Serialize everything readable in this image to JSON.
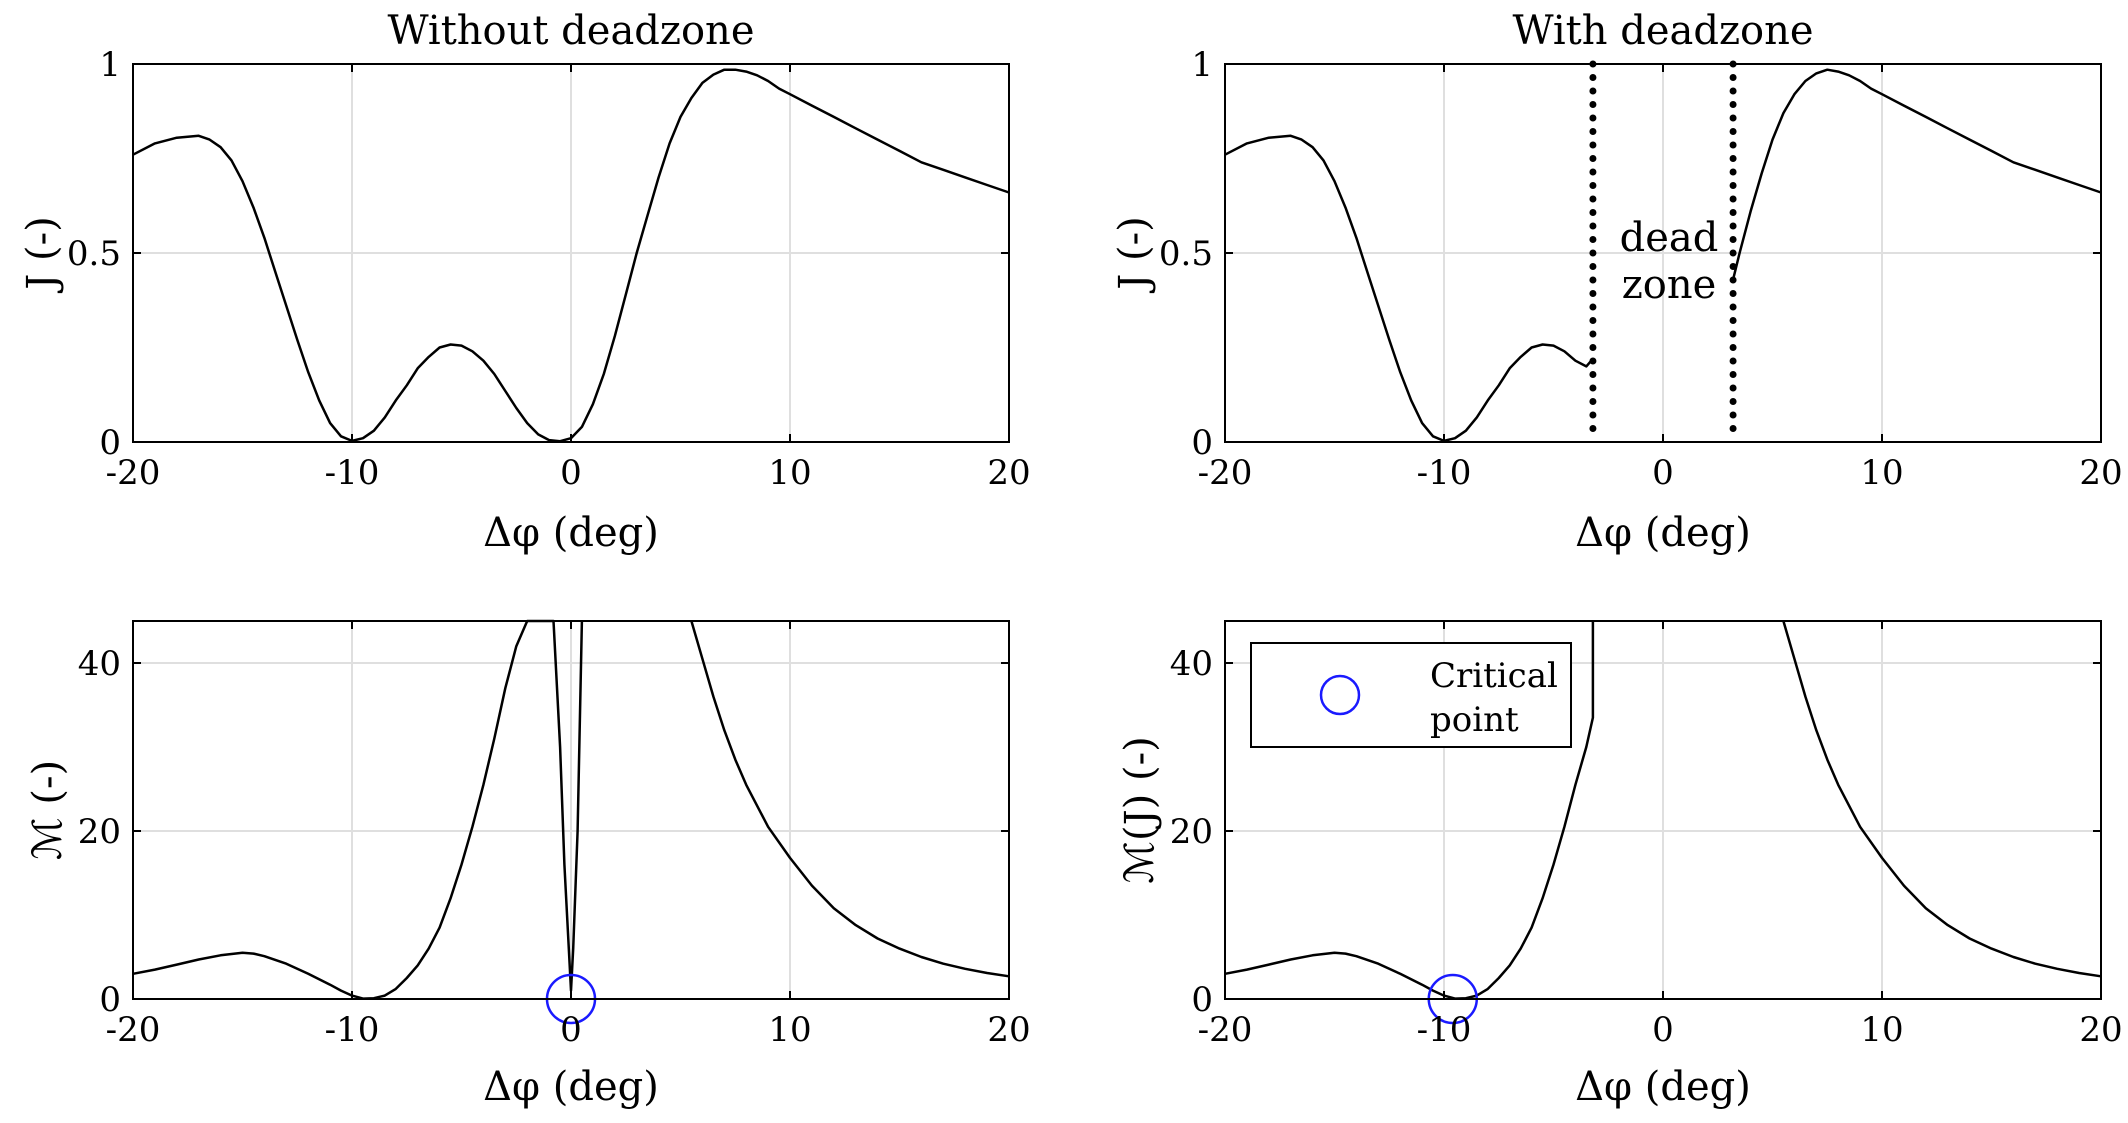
{
  "colors": {
    "line": "#000000",
    "grid": "#dfdfdf",
    "marker": "#1a1aff",
    "background": "#ffffff"
  },
  "chart_data": [
    {
      "type": "line",
      "title": "Without deadzone",
      "xlabel": "Δφ (deg)",
      "ylabel": "J (-)",
      "xlim": [
        -20,
        20
      ],
      "ylim": [
        0,
        1
      ],
      "xticks": [
        -20,
        -10,
        0,
        10,
        20
      ],
      "xtick_labels": [
        "-20",
        "-10",
        "0",
        "10",
        "20"
      ],
      "yticks": [
        0,
        0.5,
        1
      ],
      "ytick_labels": [
        "0",
        "0.5",
        "1"
      ],
      "grid": true,
      "series": [
        {
          "x": [
            -20,
            -19,
            -18,
            -17,
            -16.5,
            -16,
            -15.5,
            -15,
            -14.5,
            -14,
            -13.5,
            -13,
            -12.5,
            -12,
            -11.5,
            -11,
            -10.5,
            -10,
            -9.5,
            -9,
            -8.5,
            -8,
            -7.5,
            -7,
            -6.5,
            -6,
            -5.5,
            -5,
            -4.5,
            -4,
            -3.5,
            -3,
            -2.5,
            -2,
            -1.5,
            -1,
            -0.5,
            0,
            0.5,
            1,
            1.5,
            2,
            2.5,
            3,
            3.5,
            4,
            4.5,
            5,
            5.5,
            6,
            6.5,
            7,
            7.5,
            8,
            8.5,
            9,
            9.5,
            10,
            11,
            12,
            13,
            14,
            15,
            16,
            17,
            18,
            19,
            20
          ],
          "y": [
            0.76,
            0.79,
            0.805,
            0.81,
            0.8,
            0.78,
            0.745,
            0.69,
            0.62,
            0.54,
            0.45,
            0.36,
            0.27,
            0.185,
            0.11,
            0.05,
            0.015,
            0.003,
            0.01,
            0.03,
            0.065,
            0.11,
            0.15,
            0.195,
            0.225,
            0.25,
            0.258,
            0.255,
            0.24,
            0.215,
            0.18,
            0.135,
            0.09,
            0.05,
            0.02,
            0.005,
            0.002,
            0.01,
            0.04,
            0.1,
            0.18,
            0.28,
            0.39,
            0.5,
            0.6,
            0.7,
            0.79,
            0.86,
            0.91,
            0.95,
            0.972,
            0.985,
            0.985,
            0.98,
            0.97,
            0.955,
            0.935,
            0.92,
            0.89,
            0.86,
            0.83,
            0.8,
            0.77,
            0.74,
            0.72,
            0.7,
            0.68,
            0.66
          ]
        }
      ]
    },
    {
      "type": "line",
      "title": "With deadzone",
      "xlabel": "Δφ (deg)",
      "ylabel": "J (-)",
      "xlim": [
        -20,
        20
      ],
      "ylim": [
        0,
        1
      ],
      "xticks": [
        -20,
        -10,
        0,
        10,
        20
      ],
      "xtick_labels": [
        "-20",
        "-10",
        "0",
        "10",
        "20"
      ],
      "yticks": [
        0,
        0.5,
        1
      ],
      "ytick_labels": [
        "0",
        "0.5",
        "1"
      ],
      "grid": true,
      "deadzone": [
        -3.2,
        3.2
      ],
      "annotation": [
        "dead",
        "zone"
      ],
      "series": [
        {
          "x": [
            -20,
            -19,
            -18,
            -17,
            -16.5,
            -16,
            -15.5,
            -15,
            -14.5,
            -14,
            -13.5,
            -13,
            -12.5,
            -12,
            -11.5,
            -11,
            -10.5,
            -10,
            -9.5,
            -9,
            -8.5,
            -8,
            -7.5,
            -7,
            -6.5,
            -6,
            -5.5,
            -5,
            -4.5,
            -4,
            -3.5,
            -3.2
          ],
          "y": [
            0.76,
            0.79,
            0.805,
            0.81,
            0.8,
            0.78,
            0.745,
            0.69,
            0.62,
            0.54,
            0.45,
            0.36,
            0.27,
            0.185,
            0.11,
            0.05,
            0.015,
            0.003,
            0.01,
            0.03,
            0.065,
            0.11,
            0.15,
            0.195,
            0.225,
            0.25,
            0.258,
            0.255,
            0.24,
            0.215,
            0.2,
            0.22
          ]
        },
        {
          "x": [
            3.2,
            3.5,
            4,
            4.5,
            5,
            5.5,
            6,
            6.5,
            7,
            7.5,
            8,
            8.5,
            9,
            9.5,
            10,
            11,
            12,
            13,
            14,
            15,
            16,
            17,
            18,
            19,
            20
          ],
          "y": [
            0.43,
            0.5,
            0.61,
            0.71,
            0.8,
            0.87,
            0.92,
            0.955,
            0.975,
            0.985,
            0.98,
            0.97,
            0.955,
            0.935,
            0.92,
            0.89,
            0.86,
            0.83,
            0.8,
            0.77,
            0.74,
            0.72,
            0.7,
            0.68,
            0.66
          ]
        }
      ]
    },
    {
      "type": "line",
      "xlabel": "Δφ (deg)",
      "ylabel": "ℳ (-)",
      "xlim": [
        -20,
        20
      ],
      "ylim": [
        0,
        45
      ],
      "xticks": [
        -20,
        -10,
        0,
        10,
        20
      ],
      "xtick_labels": [
        "-20",
        "-10",
        "0",
        "10",
        "20"
      ],
      "yticks": [
        0,
        20,
        40
      ],
      "ytick_labels": [
        "0",
        "20",
        "40"
      ],
      "grid": true,
      "markers": [
        {
          "x": 0,
          "y": 0
        }
      ],
      "series": [
        {
          "x": [
            -20,
            -19,
            -18,
            -17,
            -16,
            -15,
            -14.5,
            -14,
            -13,
            -12,
            -11,
            -10.5,
            -10,
            -9.5,
            -9,
            -8.5,
            -8,
            -7.5,
            -7,
            -6.5,
            -6,
            -5.5,
            -5,
            -4.5,
            -4,
            -3.5,
            -3,
            -2.5,
            -2,
            -1.5,
            -0.8,
            -0.5,
            -0.3,
            -0.1,
            0,
            0.1,
            0.3,
            0.5
          ],
          "y": [
            3,
            3.5,
            4.1,
            4.7,
            5.2,
            5.5,
            5.4,
            5.1,
            4.2,
            3,
            1.7,
            1,
            0.4,
            0.05,
            0.1,
            0.4,
            1.2,
            2.5,
            4,
            6,
            8.5,
            12,
            16,
            20.5,
            25.5,
            31,
            37,
            42,
            45,
            46,
            46,
            30,
            16,
            6,
            1,
            6,
            20,
            46
          ]
        },
        {
          "x": [
            5.5,
            6,
            6.5,
            7,
            7.5,
            8,
            9,
            10,
            11,
            12,
            13,
            14,
            15,
            16,
            17,
            18,
            19,
            20
          ],
          "y": [
            45,
            40.5,
            36,
            32,
            28.5,
            25.5,
            20.5,
            16.8,
            13.5,
            10.8,
            8.8,
            7.2,
            6,
            5,
            4.2,
            3.6,
            3.1,
            2.7
          ]
        }
      ]
    },
    {
      "type": "line",
      "xlabel": "Δφ (deg)",
      "ylabel": "ℳ(J) (-)",
      "xlim": [
        -20,
        20
      ],
      "ylim": [
        0,
        45
      ],
      "xticks": [
        -20,
        -10,
        0,
        10,
        20
      ],
      "xtick_labels": [
        "-20",
        "-10",
        "0",
        "10",
        "20"
      ],
      "yticks": [
        0,
        20,
        40
      ],
      "ytick_labels": [
        "0",
        "20",
        "40"
      ],
      "grid": true,
      "markers": [
        {
          "x": -9.6,
          "y": 0
        }
      ],
      "legend": {
        "position": "top-left",
        "entries": [
          "Critical",
          "point"
        ]
      },
      "series": [
        {
          "x": [
            -20,
            -19,
            -18,
            -17,
            -16,
            -15,
            -14.5,
            -14,
            -13,
            -12,
            -11,
            -10.5,
            -10,
            -9.5,
            -9,
            -8.5,
            -8,
            -7.5,
            -7,
            -6.5,
            -6,
            -5.5,
            -5,
            -4.5,
            -4,
            -3.5,
            -3.2,
            -3.2
          ],
          "y": [
            3,
            3.5,
            4.1,
            4.7,
            5.2,
            5.5,
            5.4,
            5.1,
            4.2,
            3,
            1.7,
            1,
            0.4,
            0.05,
            0.1,
            0.4,
            1.2,
            2.5,
            4,
            6,
            8.5,
            12,
            16,
            20.5,
            25.5,
            30,
            33.5,
            46
          ]
        },
        {
          "x": [
            5.5,
            6,
            6.5,
            7,
            7.5,
            8,
            9,
            10,
            11,
            12,
            13,
            14,
            15,
            16,
            17,
            18,
            19,
            20
          ],
          "y": [
            45,
            40.5,
            36,
            32,
            28.5,
            25.5,
            20.5,
            16.8,
            13.5,
            10.8,
            8.8,
            7.2,
            6,
            5,
            4.2,
            3.6,
            3.1,
            2.7
          ]
        }
      ]
    }
  ]
}
